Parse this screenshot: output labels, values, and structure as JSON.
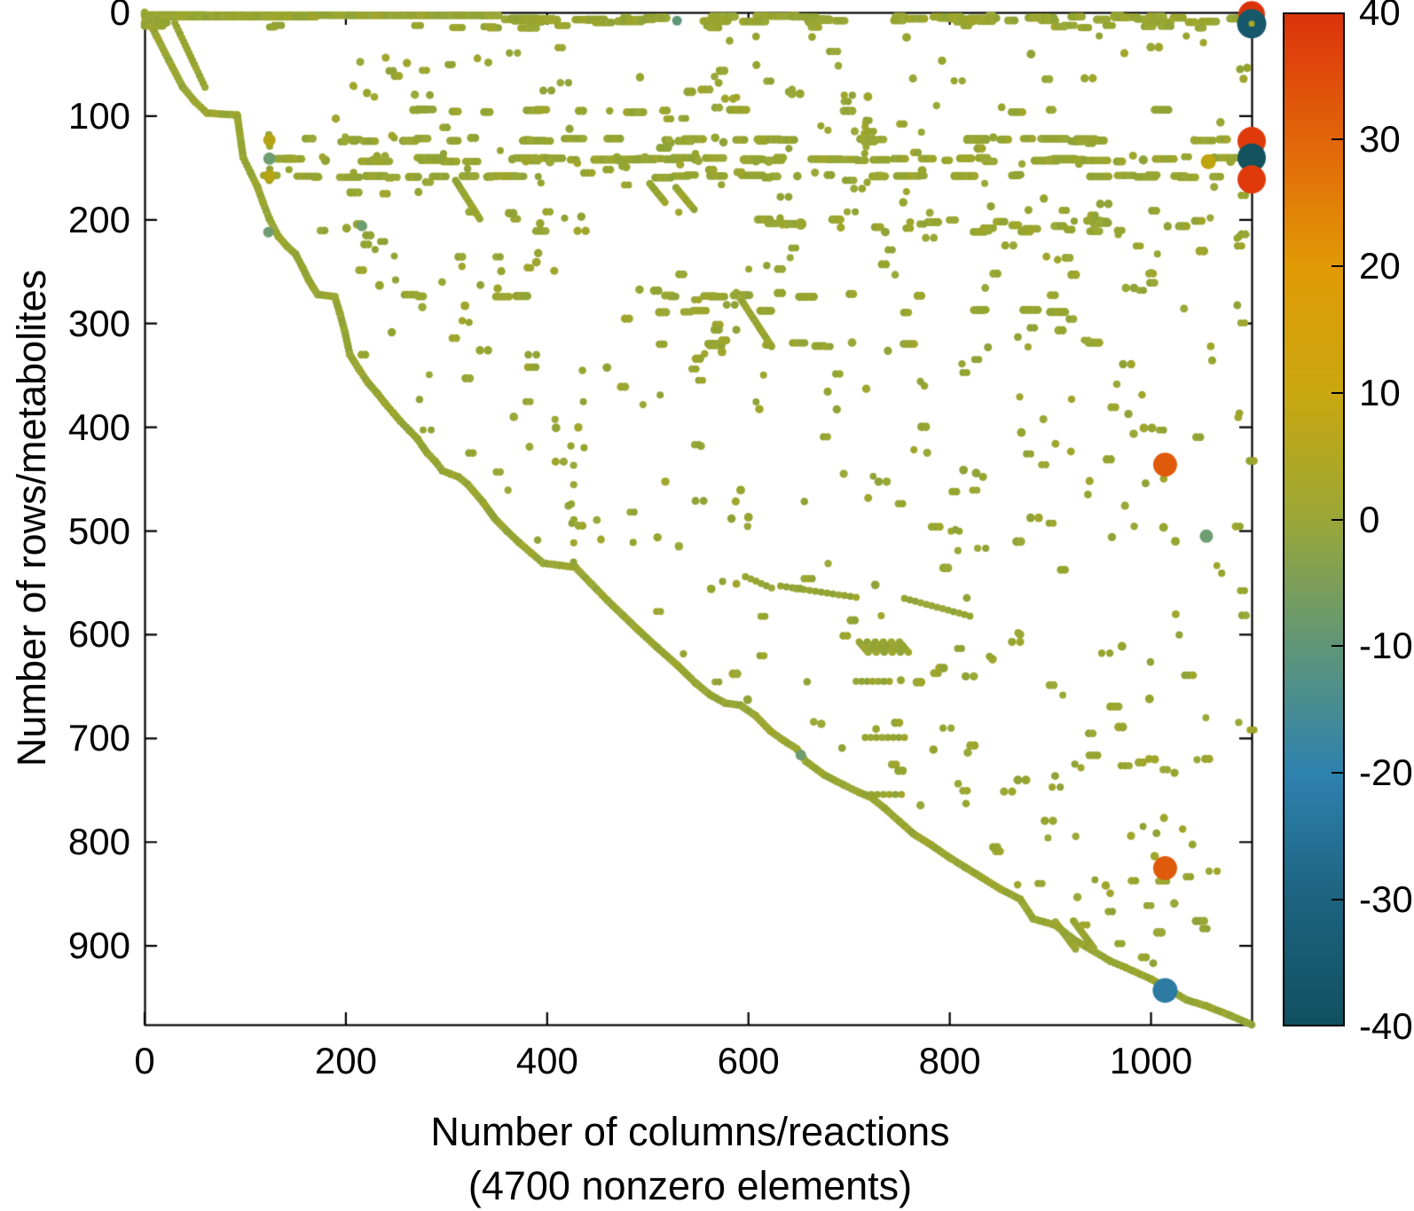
{
  "chart_data": {
    "type": "scatter",
    "subtype": "sparsity-spy-plot",
    "title": "",
    "xlabel_line1": "Number of columns/reactions",
    "xlabel_line2": "(4700 nonzero elements)",
    "ylabel": "Number of rows/metabolites",
    "nonzero_elements": 4700,
    "xlim": [
      0,
      1100
    ],
    "ylim": [
      0,
      976
    ],
    "y_inverted": true,
    "grid": false,
    "x_ticks": [
      "0",
      "200",
      "400",
      "600",
      "800",
      "1000"
    ],
    "x_tick_values": [
      0,
      200,
      400,
      600,
      800,
      1000
    ],
    "y_ticks": [
      "0",
      "100",
      "200",
      "300",
      "400",
      "500",
      "600",
      "700",
      "800",
      "900"
    ],
    "y_tick_values": [
      0,
      100,
      200,
      300,
      400,
      500,
      600,
      700,
      800,
      900
    ],
    "marker_base_color": "#96a52f",
    "marker_color_variants": [
      "#96a52f",
      "#9aa838",
      "#90a336",
      "#a0a62c"
    ],
    "colorbar": {
      "position": "right",
      "min": -40,
      "max": 40,
      "tick_labels": [
        "40",
        "30",
        "20",
        "10",
        "0",
        "-10",
        "-20",
        "-30",
        "-40"
      ],
      "tick_values": [
        40,
        30,
        20,
        10,
        0,
        -10,
        -20,
        -30,
        -40
      ],
      "inner_tick_values": [
        30,
        20,
        10,
        0,
        -10,
        -20,
        -30
      ],
      "stops": [
        {
          "value": 40,
          "color": "#dc330b"
        },
        {
          "value": 30,
          "color": "#e2650a"
        },
        {
          "value": 20,
          "color": "#e09a04"
        },
        {
          "value": 10,
          "color": "#c9a70f"
        },
        {
          "value": 0,
          "color": "#9aa737"
        },
        {
          "value": -10,
          "color": "#5f9678"
        },
        {
          "value": -20,
          "color": "#2e82ae"
        },
        {
          "value": -30,
          "color": "#1d6380"
        },
        {
          "value": -40,
          "color": "#11505f"
        }
      ]
    },
    "pattern": {
      "seed": 1337,
      "frontier": [
        [
          0,
          0
        ],
        [
          12,
          23
        ],
        [
          24,
          46
        ],
        [
          38,
          72
        ],
        [
          50,
          86
        ],
        [
          62,
          97
        ],
        [
          92,
          99
        ],
        [
          98,
          140
        ],
        [
          105,
          154
        ],
        [
          112,
          168
        ],
        [
          118,
          184
        ],
        [
          124,
          199
        ],
        [
          133,
          216
        ],
        [
          142,
          226
        ],
        [
          150,
          233
        ],
        [
          157,
          246
        ],
        [
          163,
          258
        ],
        [
          168,
          266
        ],
        [
          172,
          272
        ],
        [
          189,
          274
        ],
        [
          194,
          290
        ],
        [
          199,
          308
        ],
        [
          204,
          330
        ],
        [
          213,
          344
        ],
        [
          222,
          357
        ],
        [
          231,
          367
        ],
        [
          239,
          377
        ],
        [
          247,
          386
        ],
        [
          254,
          394
        ],
        [
          263,
          403
        ],
        [
          271,
          411
        ],
        [
          281,
          425
        ],
        [
          289,
          433
        ],
        [
          296,
          442
        ],
        [
          304,
          445
        ],
        [
          312,
          448
        ],
        [
          321,
          455
        ],
        [
          336,
          472
        ],
        [
          348,
          488
        ],
        [
          360,
          500
        ],
        [
          372,
          511
        ],
        [
          384,
          521
        ],
        [
          396,
          531
        ],
        [
          412,
          533
        ],
        [
          428,
          535
        ],
        [
          444,
          551
        ],
        [
          460,
          567
        ],
        [
          475,
          581
        ],
        [
          490,
          595
        ],
        [
          509,
          612
        ],
        [
          530,
          630
        ],
        [
          548,
          647
        ],
        [
          562,
          658
        ],
        [
          577,
          666
        ],
        [
          592,
          668
        ],
        [
          607,
          678
        ],
        [
          622,
          693
        ],
        [
          635,
          702
        ],
        [
          648,
          710
        ],
        [
          657,
          722
        ],
        [
          675,
          735
        ],
        [
          695,
          745
        ],
        [
          710,
          752
        ],
        [
          722,
          757
        ],
        [
          735,
          767
        ],
        [
          750,
          780
        ],
        [
          764,
          792
        ],
        [
          782,
          803
        ],
        [
          800,
          815
        ],
        [
          815,
          824
        ],
        [
          830,
          833
        ],
        [
          850,
          845
        ],
        [
          870,
          855
        ],
        [
          883,
          874
        ],
        [
          905,
          880
        ],
        [
          925,
          895
        ],
        [
          943,
          905
        ],
        [
          960,
          915
        ],
        [
          975,
          921
        ],
        [
          1000,
          932
        ],
        [
          1018,
          942
        ],
        [
          1035,
          952
        ],
        [
          1055,
          958
        ],
        [
          1076,
          966
        ],
        [
          1100,
          976
        ]
      ],
      "early_diagonal": [
        [
          30,
          10
        ],
        [
          60,
          72
        ]
      ],
      "parallel_strokes": [
        [
          905,
          877,
          925,
          903
        ],
        [
          923,
          876,
          943,
          902
        ]
      ],
      "top_band": {
        "solid_row_y": 2.5,
        "solid_row_x": [
          0,
          352
        ],
        "second_row": [
          0,
          170,
          4.5
        ],
        "cluster_count": 62,
        "cluster_x": [
          355,
          1095
        ],
        "cluster_y": [
          3,
          10
        ],
        "sparse_row": {
          "y": 14,
          "count": 24,
          "x": [
            60,
            1090
          ]
        },
        "left_block": [
          [
            0,
            10,
            22
          ],
          [
            0,
            13,
            18
          ]
        ]
      },
      "bands": [
        {
          "y": 95,
          "x0": 150,
          "x1": 1060,
          "n": 12,
          "lenMax": 14,
          "spread": 3
        },
        {
          "y": 123,
          "x0": 112,
          "x1": 1092,
          "n": 34,
          "lenMax": 22,
          "spread": 3
        },
        {
          "y": 142,
          "x0": 112,
          "x1": 1092,
          "n": 44,
          "lenMax": 26,
          "spread": 4,
          "heavy": true
        },
        {
          "y": 158,
          "x0": 105,
          "x1": 1092,
          "n": 34,
          "lenMax": 20,
          "spread": 3
        },
        {
          "y": 205,
          "x0": 170,
          "x1": 1060,
          "n": 26,
          "lenMax": 12,
          "spread": 14
        },
        {
          "y": 273,
          "x0": 250,
          "x1": 940,
          "n": 13,
          "lenMax": 12,
          "spread": 3
        },
        {
          "y": 288,
          "x0": 480,
          "x1": 920,
          "n": 9,
          "lenMax": 14,
          "spread": 3
        },
        {
          "y": 320,
          "x0": 500,
          "x1": 960,
          "n": 8,
          "lenMax": 10,
          "spread": 4
        }
      ],
      "diagonal_strokes": [
        [
          502,
          165,
          517,
          183
        ],
        [
          528,
          169,
          546,
          190
        ],
        [
          309,
          162,
          333,
          199
        ],
        [
          588,
          270,
          623,
          322
        ]
      ],
      "scallops": {
        "x0": 710,
        "y0": 607,
        "count": 6,
        "dx": 8,
        "len": 9,
        "drop": 10
      },
      "dotted_runs": [
        [
          597,
          544,
          623,
          555
        ],
        [
          632,
          553,
          707,
          564
        ],
        [
          755,
          565,
          820,
          582
        ],
        [
          707,
          645,
          740,
          645
        ],
        [
          716,
          699,
          755,
          699
        ],
        [
          716,
          754,
          752,
          754
        ]
      ],
      "vertical_runs": [
        {
          "x": 425,
          "y0": 418,
          "y1": 530,
          "n": 7
        },
        {
          "x": 716,
          "y0": 104,
          "y1": 136,
          "n": 6
        },
        {
          "x": 124,
          "y0": 118,
          "y1": 162,
          "n": 5
        }
      ],
      "scatter_regions": [
        {
          "x0": 150,
          "x1": 1095,
          "y0": 22,
          "y1": 95,
          "n": 60
        },
        {
          "x0": 130,
          "x1": 1095,
          "y0": 100,
          "y1": 230,
          "n": 120
        },
        {
          "x0": 200,
          "x1": 1095,
          "y0": 230,
          "y1": 460,
          "n": 150
        },
        {
          "x0": 350,
          "x1": 1095,
          "y0": 460,
          "y1": 700,
          "n": 115
        },
        {
          "x0": 650,
          "x1": 1095,
          "y0": 700,
          "y1": 950,
          "n": 90
        },
        {
          "x0": 1085,
          "x1": 1099,
          "y0": 30,
          "y1": 700,
          "n": 13
        }
      ]
    },
    "minor_colored_markers": [
      {
        "x": 124,
        "y": 123,
        "color": "#b5a312",
        "r": 7
      },
      {
        "x": 124,
        "y": 141,
        "color": "#6f9d72",
        "r": 7
      },
      {
        "x": 124,
        "y": 158,
        "color": "#b5a312",
        "r": 7
      },
      {
        "x": 123,
        "y": 212,
        "color": "#6f9d72",
        "r": 6
      },
      {
        "x": 216,
        "y": 206,
        "color": "#6f9d72",
        "r": 6
      },
      {
        "x": 652,
        "y": 716,
        "color": "#6f9d72",
        "r": 6
      },
      {
        "x": 529,
        "y": 8,
        "color": "#5f9678",
        "r": 5.5
      },
      {
        "x": 652,
        "y": 204,
        "color": "#9aa62f",
        "r": 6.5
      }
    ],
    "special_markers": [
      {
        "x": 1100,
        "y": 2,
        "color": "#db3309",
        "r": 15
      },
      {
        "x": 1100,
        "y": 11,
        "color": "#17586a",
        "r": 16.5
      },
      {
        "x": 1100,
        "y": 124,
        "color": "#e03a0b",
        "r": 16
      },
      {
        "x": 1100,
        "y": 140,
        "color": "#14525f",
        "r": 16
      },
      {
        "x": 1100,
        "y": 161,
        "color": "#e03a0b",
        "r": 16
      },
      {
        "x": 1057,
        "y": 144,
        "color": "#bfa40f",
        "r": 8.5
      },
      {
        "x": 1014,
        "y": 436,
        "color": "#e05a0b",
        "r": 13.5
      },
      {
        "x": 1055,
        "y": 505,
        "color": "#6f9d72",
        "r": 7.5
      },
      {
        "x": 1014,
        "y": 825,
        "color": "#e05a0b",
        "r": 13.5
      },
      {
        "x": 1014,
        "y": 943,
        "color": "#2d7ba3",
        "r": 14
      }
    ],
    "overlay_dots": [
      {
        "x": 1100,
        "y": 11,
        "color": "#a9a921",
        "r": 3.5
      }
    ]
  }
}
